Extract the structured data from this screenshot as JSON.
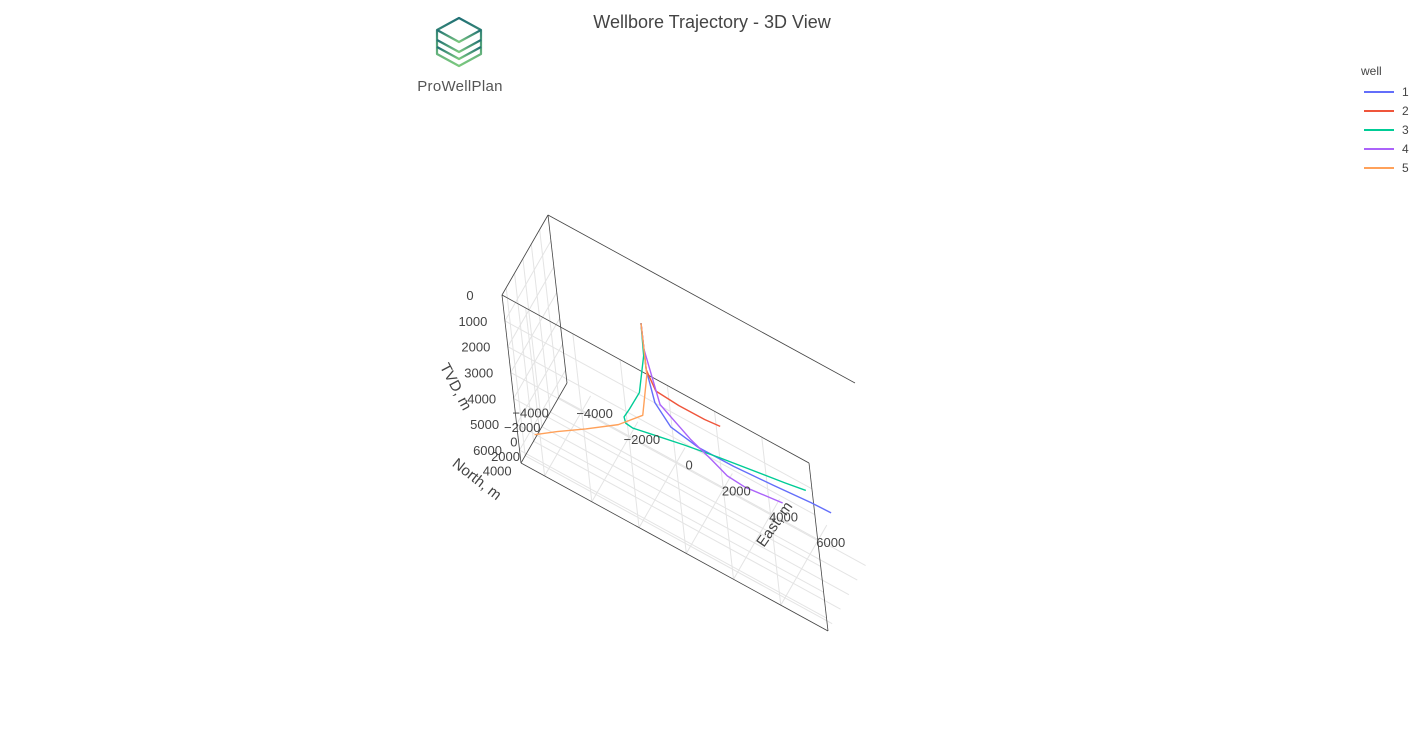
{
  "title": "Wellbore Trajectory - 3D View",
  "logo": {
    "text": "ProWellPlan",
    "icon": "hexagon-layers-logo-icon",
    "color": "#3aa79a"
  },
  "legend": {
    "title": "well",
    "placement": "top-right"
  },
  "chart_data": {
    "type": "line3d",
    "title": "Wellbore Trajectory - 3D View",
    "xlabel": "North, m",
    "ylabel": "East, m",
    "zlabel": "TVD, m",
    "xlim": [
      -6000,
      5000
    ],
    "ylim": [
      -5000,
      8000
    ],
    "zlim": [
      0,
      6500
    ],
    "zreversed": true,
    "xticks": [
      "4000",
      "2000",
      "0",
      "−2000",
      "−4000"
    ],
    "yticks": [
      "6000",
      "4000",
      "2000",
      "0",
      "−2000",
      "−4000"
    ],
    "zticks": [
      "0",
      "1000",
      "2000",
      "3000",
      "4000",
      "5000",
      "6000"
    ],
    "grid": true,
    "series": [
      {
        "name": "1",
        "color": "#636efa",
        "x": [
          0,
          0,
          -100,
          -500,
          -1200,
          -2000,
          -2800,
          -3400,
          -3600
        ],
        "y": [
          0,
          0,
          200,
          700,
          1700,
          3000,
          4500,
          6000,
          6800
        ],
        "z": [
          0,
          1800,
          3000,
          3800,
          4300,
          4600,
          4800,
          4900,
          4950
        ]
      },
      {
        "name": "2",
        "color": "#ef553b",
        "x": [
          0,
          0,
          -100,
          -400,
          -800,
          -1100
        ],
        "y": [
          0,
          0,
          300,
          1200,
          2200,
          2800
        ],
        "z": [
          0,
          1800,
          2500,
          2700,
          2850,
          2900
        ]
      },
      {
        "name": "3",
        "color": "#00cc96",
        "x": [
          0,
          200,
          1000,
          2000,
          2400,
          2200,
          1800,
          1000,
          0,
          -800,
          -2200,
          -2600
        ],
        "y": [
          0,
          0,
          -200,
          -500,
          -700,
          -700,
          -500,
          100,
          1300,
          2600,
          5200,
          6000
        ],
        "z": [
          0,
          1200,
          2500,
          3000,
          3300,
          3600,
          3800,
          3950,
          4050,
          4100,
          4200,
          4200
        ]
      },
      {
        "name": "4",
        "color": "#ab63fa",
        "x": [
          0,
          0,
          -200,
          -600,
          -900,
          -1400,
          -2000,
          -3000
        ],
        "y": [
          0,
          0,
          400,
          1500,
          2300,
          2800,
          3400,
          4800
        ],
        "z": [
          0,
          1000,
          3000,
          3900,
          4400,
          4900,
          5200,
          5400
        ]
      },
      {
        "name": "5",
        "color": "#ffa15a",
        "x": [
          0,
          0,
          400,
          1500,
          2800,
          3700,
          4300
        ],
        "y": [
          0,
          0,
          -300,
          -1200,
          -2400,
          -3500,
          -4400
        ],
        "z": [
          0,
          2000,
          3600,
          4100,
          4500,
          4900,
          5300
        ]
      }
    ]
  }
}
